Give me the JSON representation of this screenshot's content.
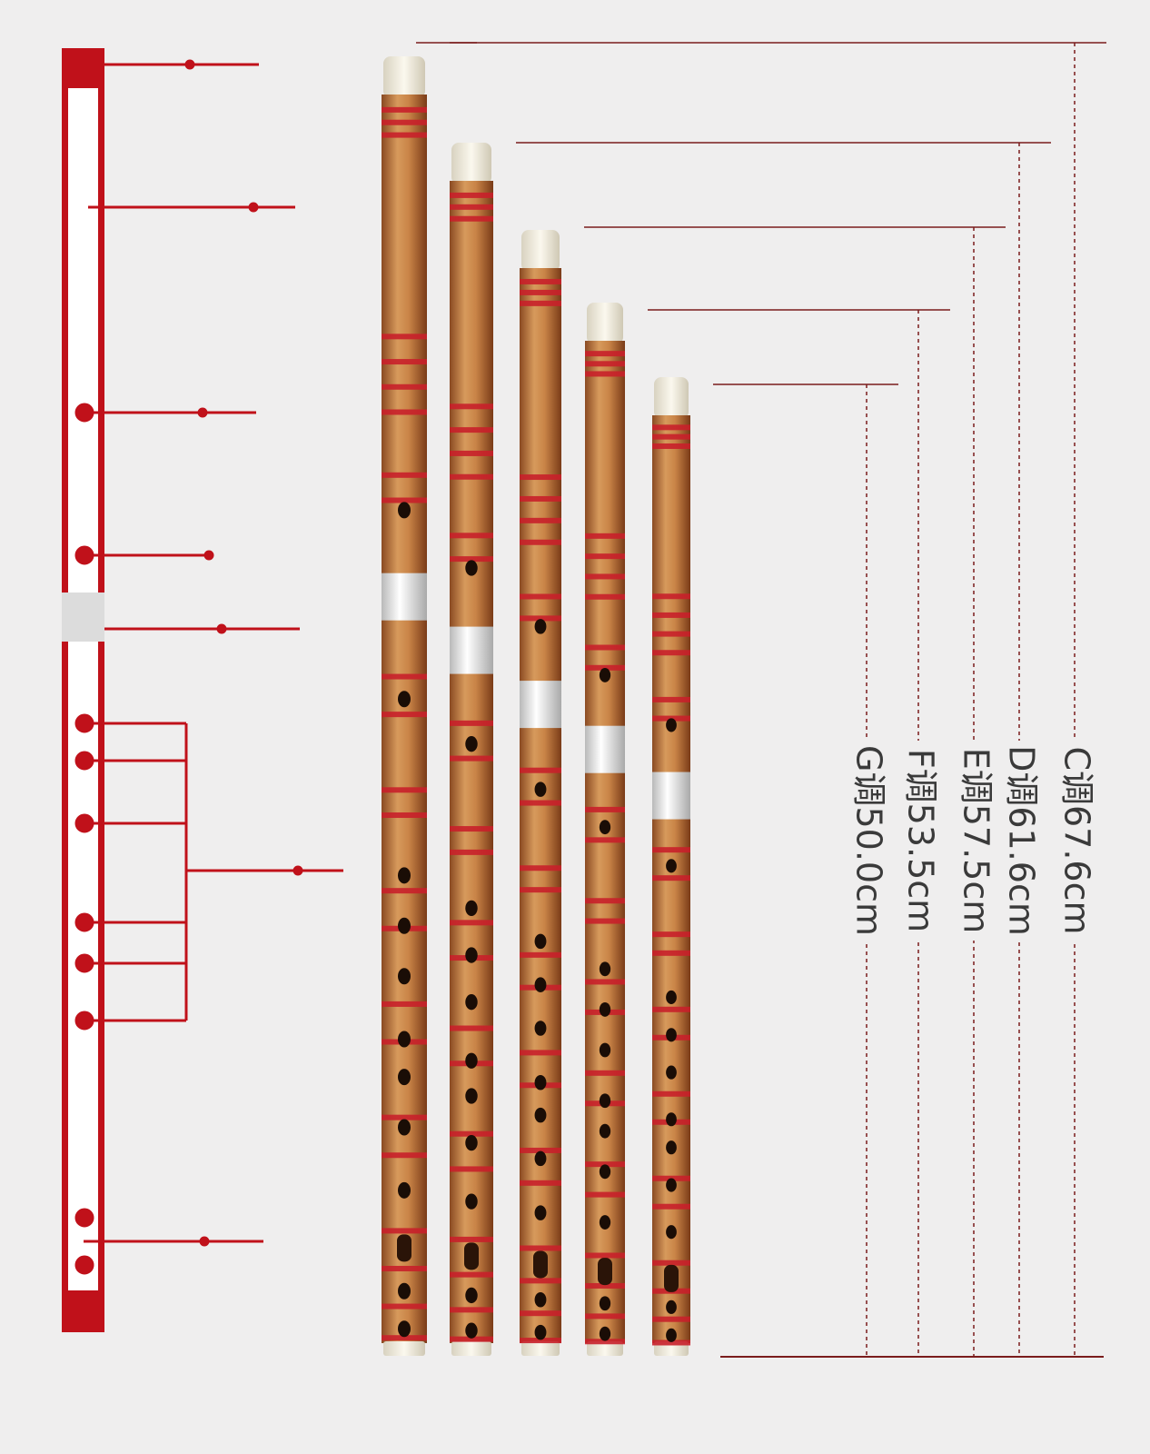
{
  "flutes": [
    {
      "label": "C调67.6cm"
    },
    {
      "label": "D调61.6cm"
    },
    {
      "label": "E调57.5cm"
    },
    {
      "label": "F调53.5cm"
    },
    {
      "label": "G调50.0cm"
    }
  ]
}
